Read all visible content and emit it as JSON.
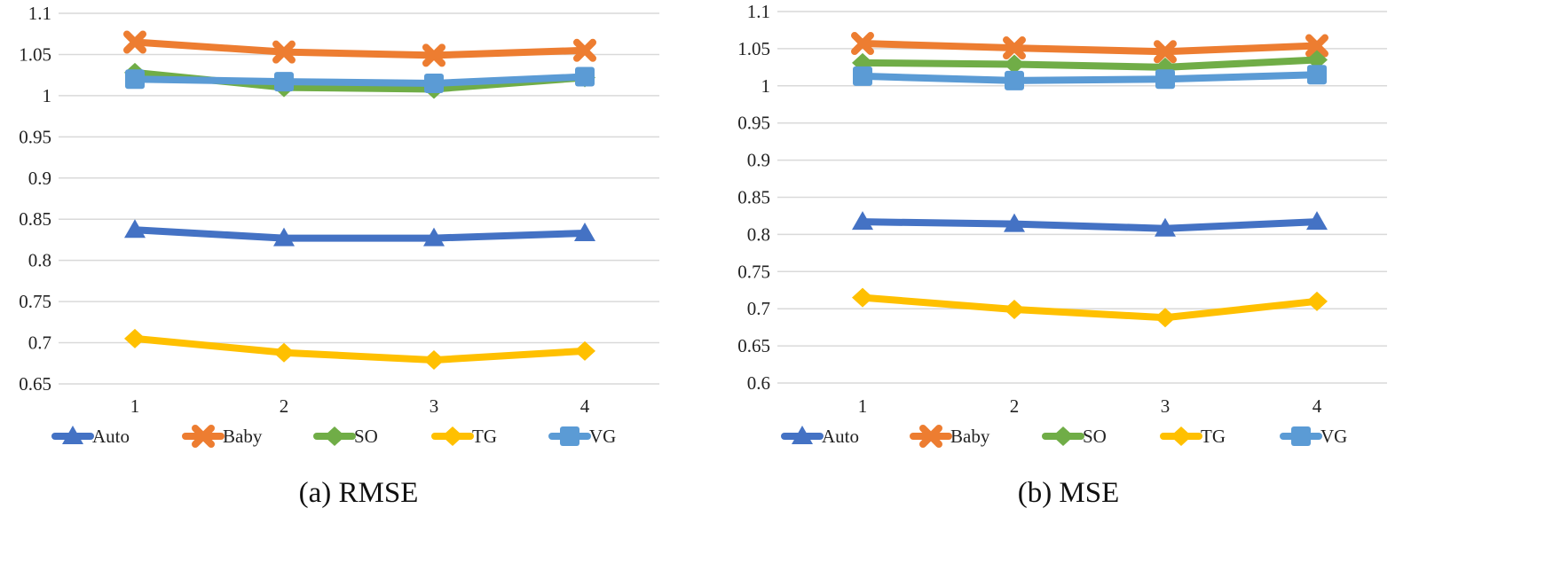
{
  "figure": {
    "series_colors": {
      "Auto": "#4472C4",
      "Baby": "#ED7D31",
      "SO": "#70AD47",
      "TG": "#FFC000",
      "VG": "#5B9BD5"
    }
  },
  "chart_data": [
    {
      "type": "line",
      "caption": "(a) RMSE",
      "categories": [
        "1",
        "2",
        "3",
        "4"
      ],
      "ylim": [
        0.65,
        1.1
      ],
      "yticks": [
        "0.65",
        "0.7",
        "0.75",
        "0.8",
        "0.85",
        "0.9",
        "0.95",
        "1",
        "1.05",
        "1.1"
      ],
      "grid": true,
      "legend": "bottom",
      "series": [
        {
          "name": "Auto",
          "marker": "triangle",
          "values": [
            0.837,
            0.827,
            0.827,
            0.833
          ]
        },
        {
          "name": "Baby",
          "marker": "x",
          "values": [
            1.065,
            1.053,
            1.049,
            1.055
          ]
        },
        {
          "name": "SO",
          "marker": "diamond",
          "values": [
            1.028,
            1.01,
            1.008,
            1.022
          ]
        },
        {
          "name": "TG",
          "marker": "diamond",
          "values": [
            0.705,
            0.688,
            0.679,
            0.69
          ]
        },
        {
          "name": "VG",
          "marker": "square",
          "values": [
            1.02,
            1.017,
            1.015,
            1.023
          ]
        }
      ]
    },
    {
      "type": "line",
      "caption": "(b) MSE",
      "categories": [
        "1",
        "2",
        "3",
        "4"
      ],
      "ylim": [
        0.6,
        1.1
      ],
      "yticks": [
        "0.6",
        "0.65",
        "0.7",
        "0.75",
        "0.8",
        "0.85",
        "0.9",
        "0.95",
        "1",
        "1.05",
        "1.1"
      ],
      "grid": true,
      "legend": "bottom",
      "series": [
        {
          "name": "Auto",
          "marker": "triangle",
          "values": [
            0.817,
            0.814,
            0.808,
            0.817
          ]
        },
        {
          "name": "Baby",
          "marker": "x",
          "values": [
            1.057,
            1.051,
            1.046,
            1.054
          ]
        },
        {
          "name": "SO",
          "marker": "diamond",
          "values": [
            1.031,
            1.029,
            1.025,
            1.035
          ]
        },
        {
          "name": "TG",
          "marker": "diamond",
          "values": [
            0.715,
            0.699,
            0.688,
            0.71
          ]
        },
        {
          "name": "VG",
          "marker": "square",
          "values": [
            1.013,
            1.007,
            1.009,
            1.015
          ]
        }
      ]
    }
  ]
}
